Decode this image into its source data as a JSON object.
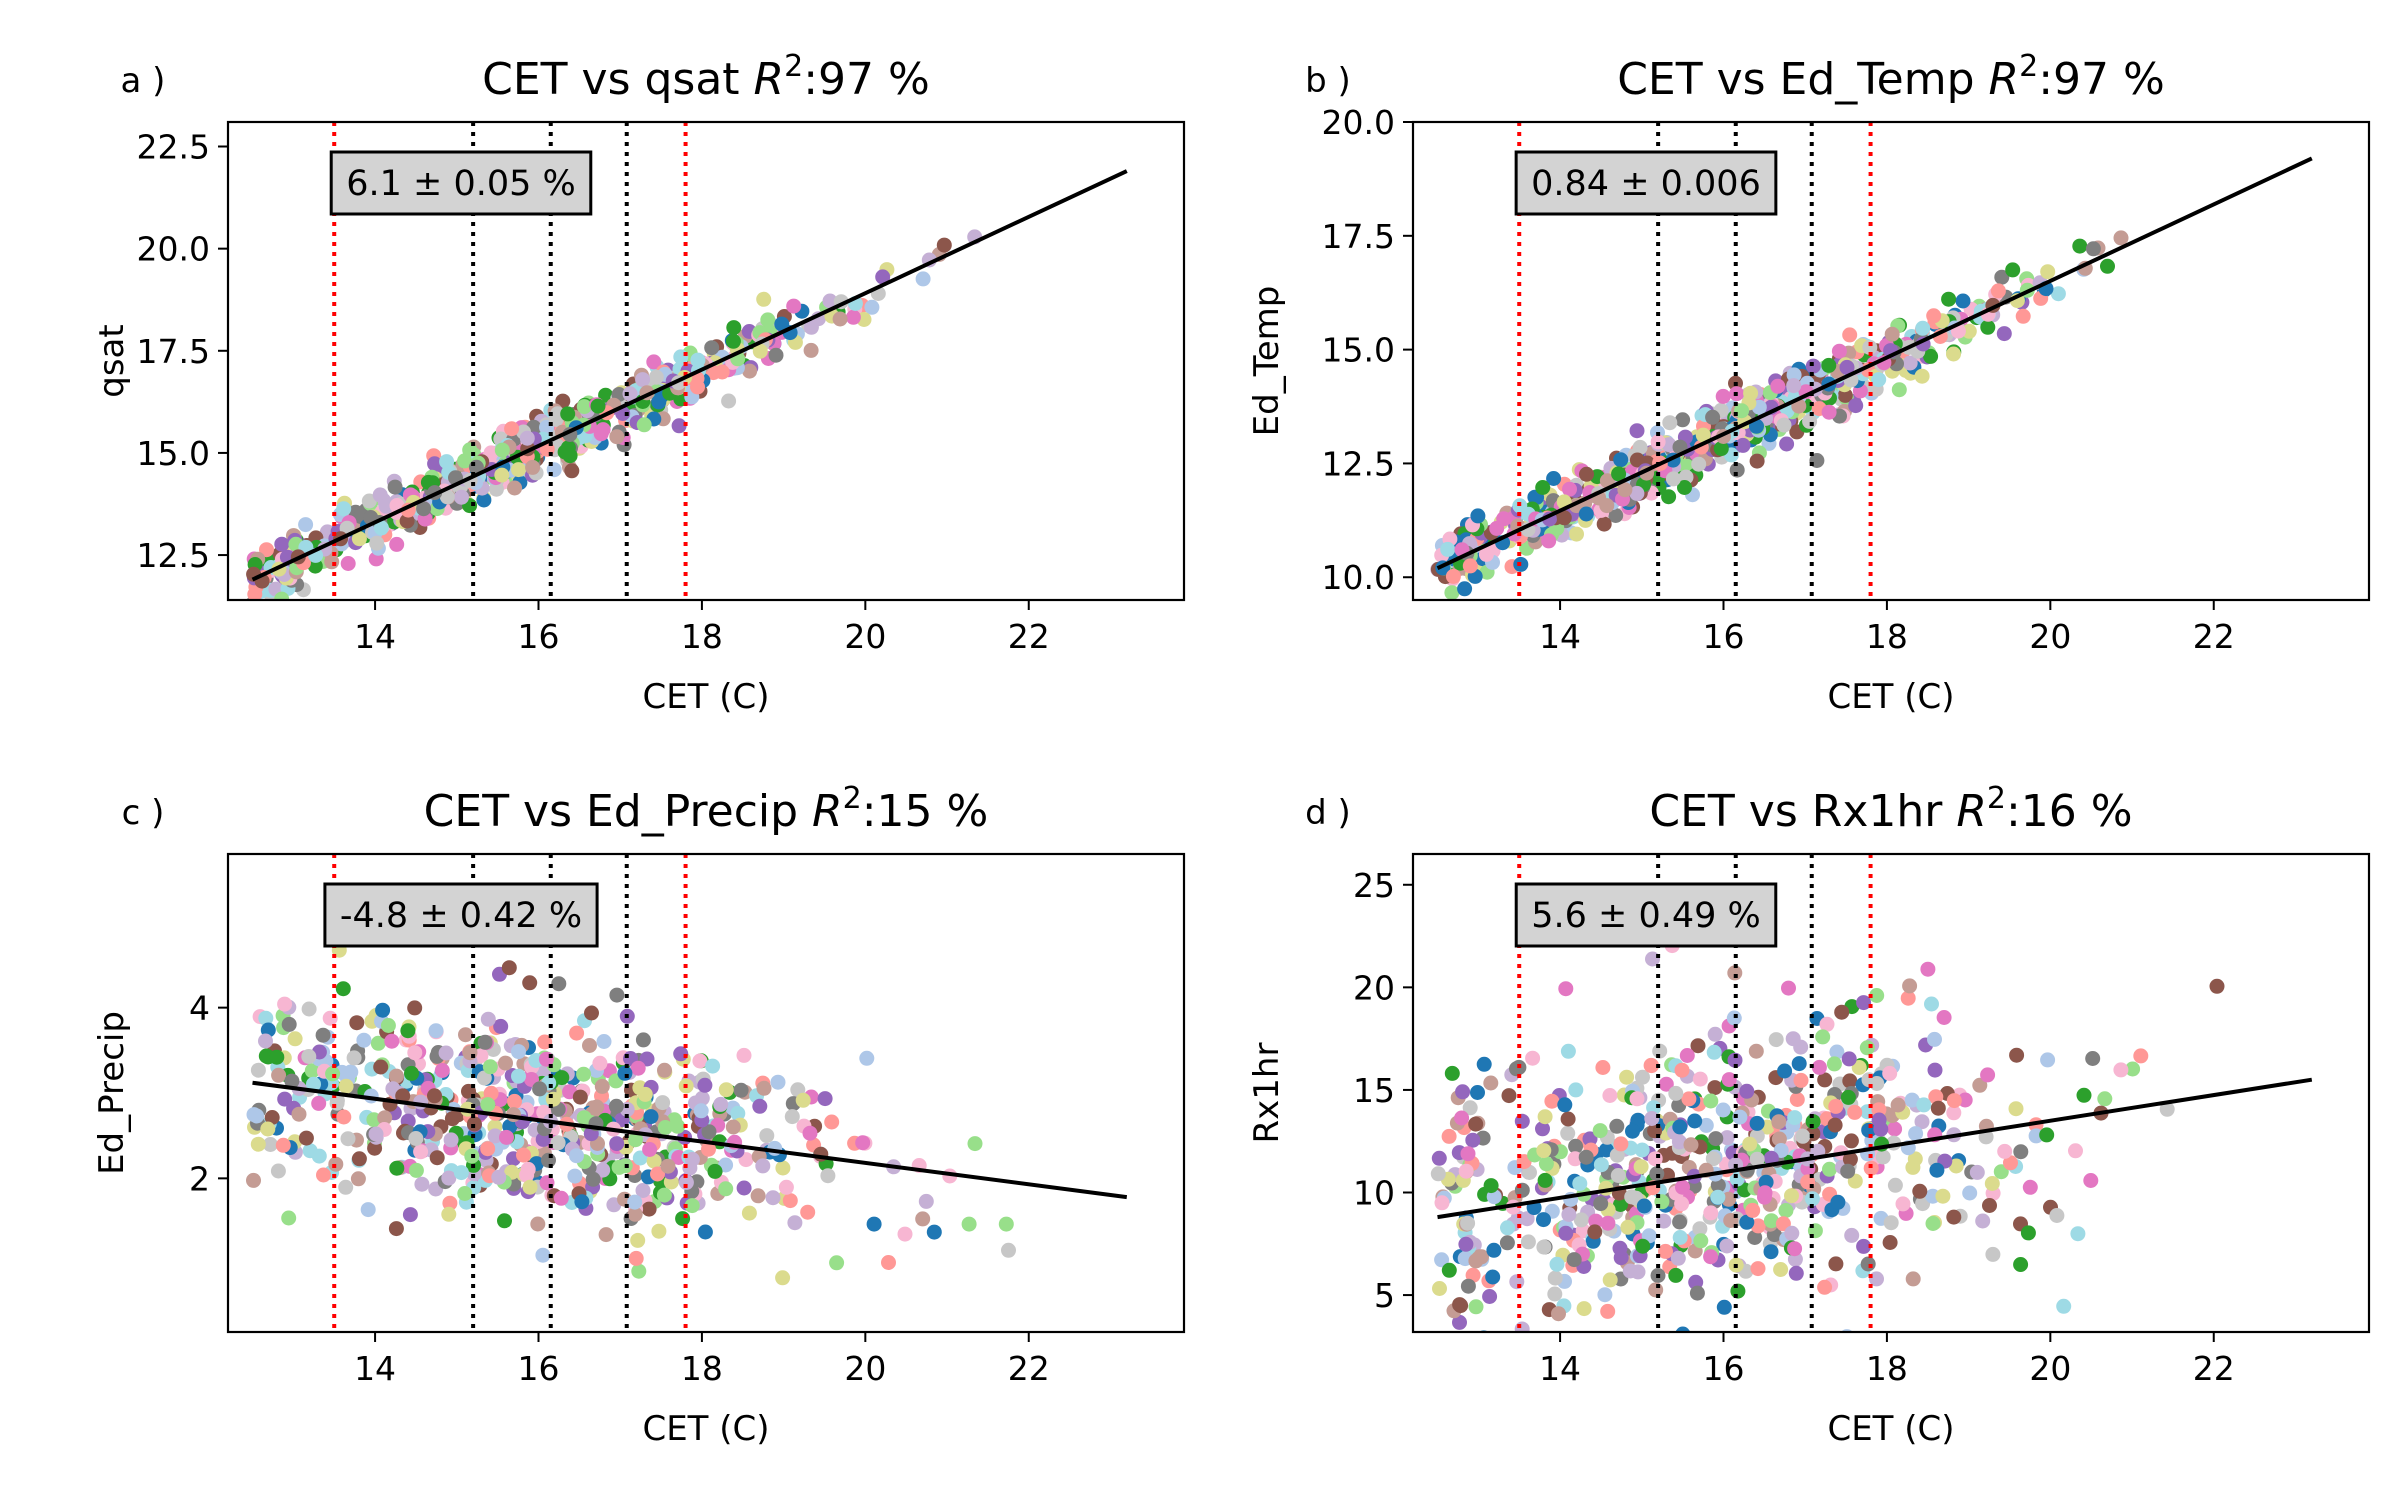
{
  "chart_data": [
    {
      "type": "scatter",
      "panel_label": "a )",
      "title": "CET vs qsat",
      "title_r2": "97 %",
      "xlabel": "CET (C)",
      "ylabel": "qsat",
      "xlim": [
        12.2,
        23.9
      ],
      "ylim": [
        11.4,
        23.1
      ],
      "xticks": [
        14,
        16,
        18,
        20,
        22
      ],
      "yticks": [
        12.5,
        15.0,
        17.5,
        20.0,
        22.5
      ],
      "yticklabels": [
        "12.5",
        "15.0",
        "17.5",
        "20.0",
        "22.5"
      ],
      "annotation": "6.1 ± 0.05 %",
      "vlines_red": [
        13.5,
        17.8
      ],
      "vlines_black": [
        15.2,
        16.15,
        17.08
      ],
      "fit_line": {
        "x": [
          12.5,
          23.2
        ],
        "y": [
          11.9,
          21.9
        ]
      },
      "points": {
        "count": 700,
        "x_range": [
          12.5,
          23.2
        ],
        "model": "linear",
        "noise": 0.35
      },
      "legend": "none",
      "grid": false
    },
    {
      "type": "scatter",
      "panel_label": "b )",
      "title": "CET vs Ed_Temp",
      "title_r2": "97 %",
      "xlabel": "CET (C)",
      "ylabel": "Ed_Temp",
      "xlim": [
        12.2,
        23.9
      ],
      "ylim": [
        9.5,
        20.0
      ],
      "xticks": [
        14,
        16,
        18,
        20,
        22
      ],
      "yticks": [
        10.0,
        12.5,
        15.0,
        17.5,
        20.0
      ],
      "yticklabels": [
        "10.0",
        "12.5",
        "15.0",
        "17.5",
        "20.0"
      ],
      "annotation": "0.84 ± 0.006",
      "vlines_red": [
        13.5,
        17.8
      ],
      "vlines_black": [
        15.2,
        16.15,
        17.08
      ],
      "fit_line": {
        "x": [
          12.5,
          23.2
        ],
        "y": [
          10.2,
          19.2
        ]
      },
      "points": {
        "count": 700,
        "x_range": [
          12.5,
          23.2
        ],
        "model": "linear",
        "noise": 0.35
      },
      "legend": "none",
      "grid": false
    },
    {
      "type": "scatter",
      "panel_label": "c )",
      "title": "CET vs Ed_Precip",
      "title_r2": "15 %",
      "xlabel": "CET (C)",
      "ylabel": "Ed_Precip",
      "xlim": [
        12.2,
        23.9
      ],
      "ylim": [
        0.2,
        5.8
      ],
      "xticks": [
        14,
        16,
        18,
        20,
        22
      ],
      "yticks": [
        2,
        4
      ],
      "yticklabels": [
        "2",
        "4"
      ],
      "annotation": "-4.8 ± 0.42 %",
      "vlines_red": [
        13.5,
        17.8
      ],
      "vlines_black": [
        15.2,
        16.15,
        17.08
      ],
      "fit_line": {
        "x": [
          12.5,
          23.2
        ],
        "y": [
          3.12,
          1.78
        ]
      },
      "points": {
        "count": 700,
        "x_range": [
          12.5,
          23.2
        ],
        "model": "linear",
        "noise": 0.6
      },
      "legend": "none",
      "grid": false
    },
    {
      "type": "scatter",
      "panel_label": "d )",
      "title": "CET vs Rx1hr",
      "title_r2": "16 %",
      "xlabel": "CET (C)",
      "ylabel": "Rx1hr",
      "xlim": [
        12.2,
        23.9
      ],
      "ylim": [
        3.2,
        26.5
      ],
      "xticks": [
        14,
        16,
        18,
        20,
        22
      ],
      "yticks": [
        5,
        10,
        15,
        20,
        25
      ],
      "yticklabels": [
        "5",
        "10",
        "15",
        "20",
        "25"
      ],
      "annotation": "5.6 ± 0.49 %",
      "vlines_red": [
        13.5,
        17.8
      ],
      "vlines_black": [
        15.2,
        16.15,
        17.08
      ],
      "fit_line": {
        "x": [
          12.5,
          23.2
        ],
        "y": [
          8.8,
          15.5
        ]
      },
      "points": {
        "count": 700,
        "x_range": [
          12.5,
          23.2
        ],
        "model": "linear",
        "noise": 3.5
      },
      "legend": "none",
      "grid": false
    }
  ],
  "colors": {
    "points": [
      "#1f77b4",
      "#2ca02c",
      "#98df8a",
      "#8c564b",
      "#e377c2",
      "#7f7f7f",
      "#c7c7c7",
      "#dbdb8d",
      "#9edae5",
      "#9467bd",
      "#ff9896",
      "#c49c94",
      "#c5b0d5",
      "#aec7e8",
      "#f7b6d2"
    ],
    "fit_line": "#000000",
    "vline_red": "#ff0000",
    "vline_black": "#000000",
    "annotation_fill": "#d3d3d3",
    "axes": "#000000"
  }
}
